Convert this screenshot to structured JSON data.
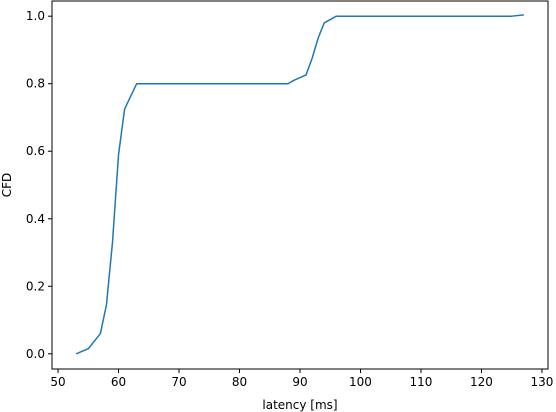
{
  "chart_data": {
    "type": "line",
    "title": "",
    "xlabel": "latency [ms]",
    "ylabel": "CFD",
    "xlim": [
      49,
      131
    ],
    "ylim": [
      -0.045,
      1.045
    ],
    "xticks": [
      50,
      60,
      70,
      80,
      90,
      100,
      110,
      120,
      130
    ],
    "yticks": [
      0.0,
      0.2,
      0.4,
      0.6,
      0.8,
      1.0
    ],
    "xtick_labels": [
      "50",
      "60",
      "70",
      "80",
      "90",
      "100",
      "110",
      "120",
      "130"
    ],
    "ytick_labels": [
      "0.0",
      "0.2",
      "0.4",
      "0.6",
      "0.8",
      "1.0"
    ],
    "grid": false,
    "line_color": "#1f77b4",
    "series": [
      {
        "x": [
          53,
          55,
          57,
          58,
          59,
          59.5,
          60,
          61,
          63,
          88,
          89,
          91,
          92,
          93,
          94,
          95,
          96,
          100,
          125,
          127
        ],
        "y": [
          0.0,
          0.015,
          0.06,
          0.145,
          0.33,
          0.46,
          0.59,
          0.725,
          0.8,
          0.8,
          0.81,
          0.826,
          0.875,
          0.935,
          0.98,
          0.99,
          1.0,
          1.0,
          1.0,
          1.004
        ]
      }
    ]
  }
}
